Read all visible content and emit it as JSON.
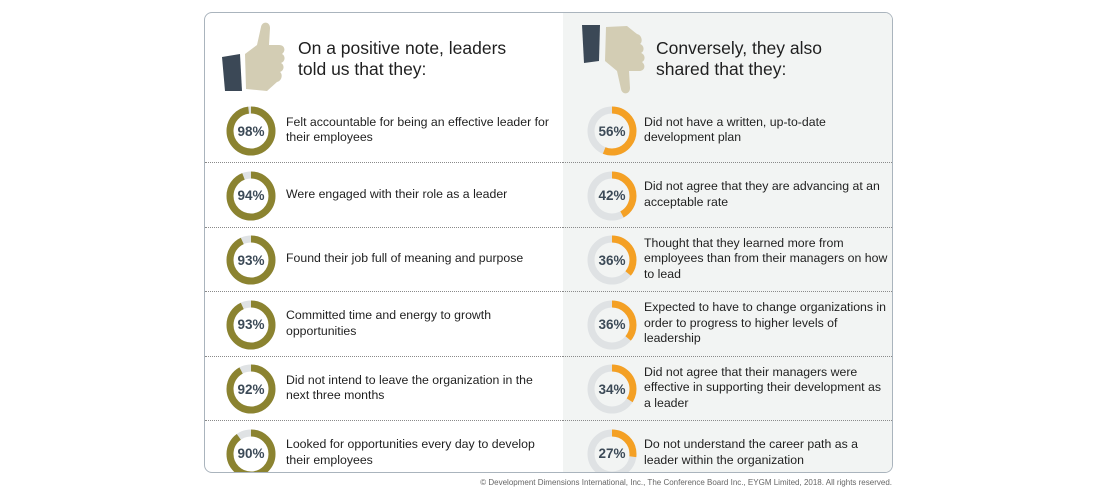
{
  "colors": {
    "positive": "#8b8330",
    "negative": "#f4a024",
    "track": "#dfe2e4",
    "thumb_dark": "#3b4856",
    "thumb_light": "#d3cdb4"
  },
  "icons": {
    "positive": "thumbs-up-icon",
    "negative": "thumbs-down-icon"
  },
  "left": {
    "title_line1": "On a positive note, leaders",
    "title_line2": "told us that they:"
  },
  "right": {
    "title_line1": "Conversely, they also",
    "title_line2": "shared that they:"
  },
  "chart_data": [
    {
      "type": "donut",
      "title": "On a positive note, leaders told us that they:",
      "unit": "%",
      "items": [
        {
          "label": "98%",
          "value": 98,
          "text": "Felt accountable for being an effective leader for their employees"
        },
        {
          "label": "94%",
          "value": 94,
          "text": "Were engaged with their role as a leader"
        },
        {
          "label": "93%",
          "value": 93,
          "text": "Found their job full of meaning and purpose"
        },
        {
          "label": "93%",
          "value": 93,
          "text": "Committed time and energy to growth opportunities"
        },
        {
          "label": "92%",
          "value": 92,
          "text": "Did not intend to leave the organization in the next three months"
        },
        {
          "label": "90%",
          "value": 90,
          "text": "Looked for opportunities every day to develop their employees"
        }
      ]
    },
    {
      "type": "donut",
      "title": "Conversely, they also shared that they:",
      "unit": "%",
      "items": [
        {
          "label": "56%",
          "value": 56,
          "text": "Did not have a written, up-to-date development plan"
        },
        {
          "label": "42%",
          "value": 42,
          "text": "Did not agree that they are advancing at an acceptable rate"
        },
        {
          "label": "36%",
          "value": 36,
          "text": "Thought that they learned more from employees than from their managers on how to lead"
        },
        {
          "label": "36%",
          "value": 36,
          "text": "Expected to have to change organizations in order to progress to higher levels of leadership"
        },
        {
          "label": "34%",
          "value": 34,
          "text": "Did not agree that their managers were effective in supporting their development as a leader"
        },
        {
          "label": "27%",
          "value": 27,
          "text": "Do not understand the career path as a leader within the organization"
        }
      ]
    }
  ],
  "footer": "© Development Dimensions International, Inc., The Conference Board Inc., EYGM Limited, 2018. All rights reserved."
}
